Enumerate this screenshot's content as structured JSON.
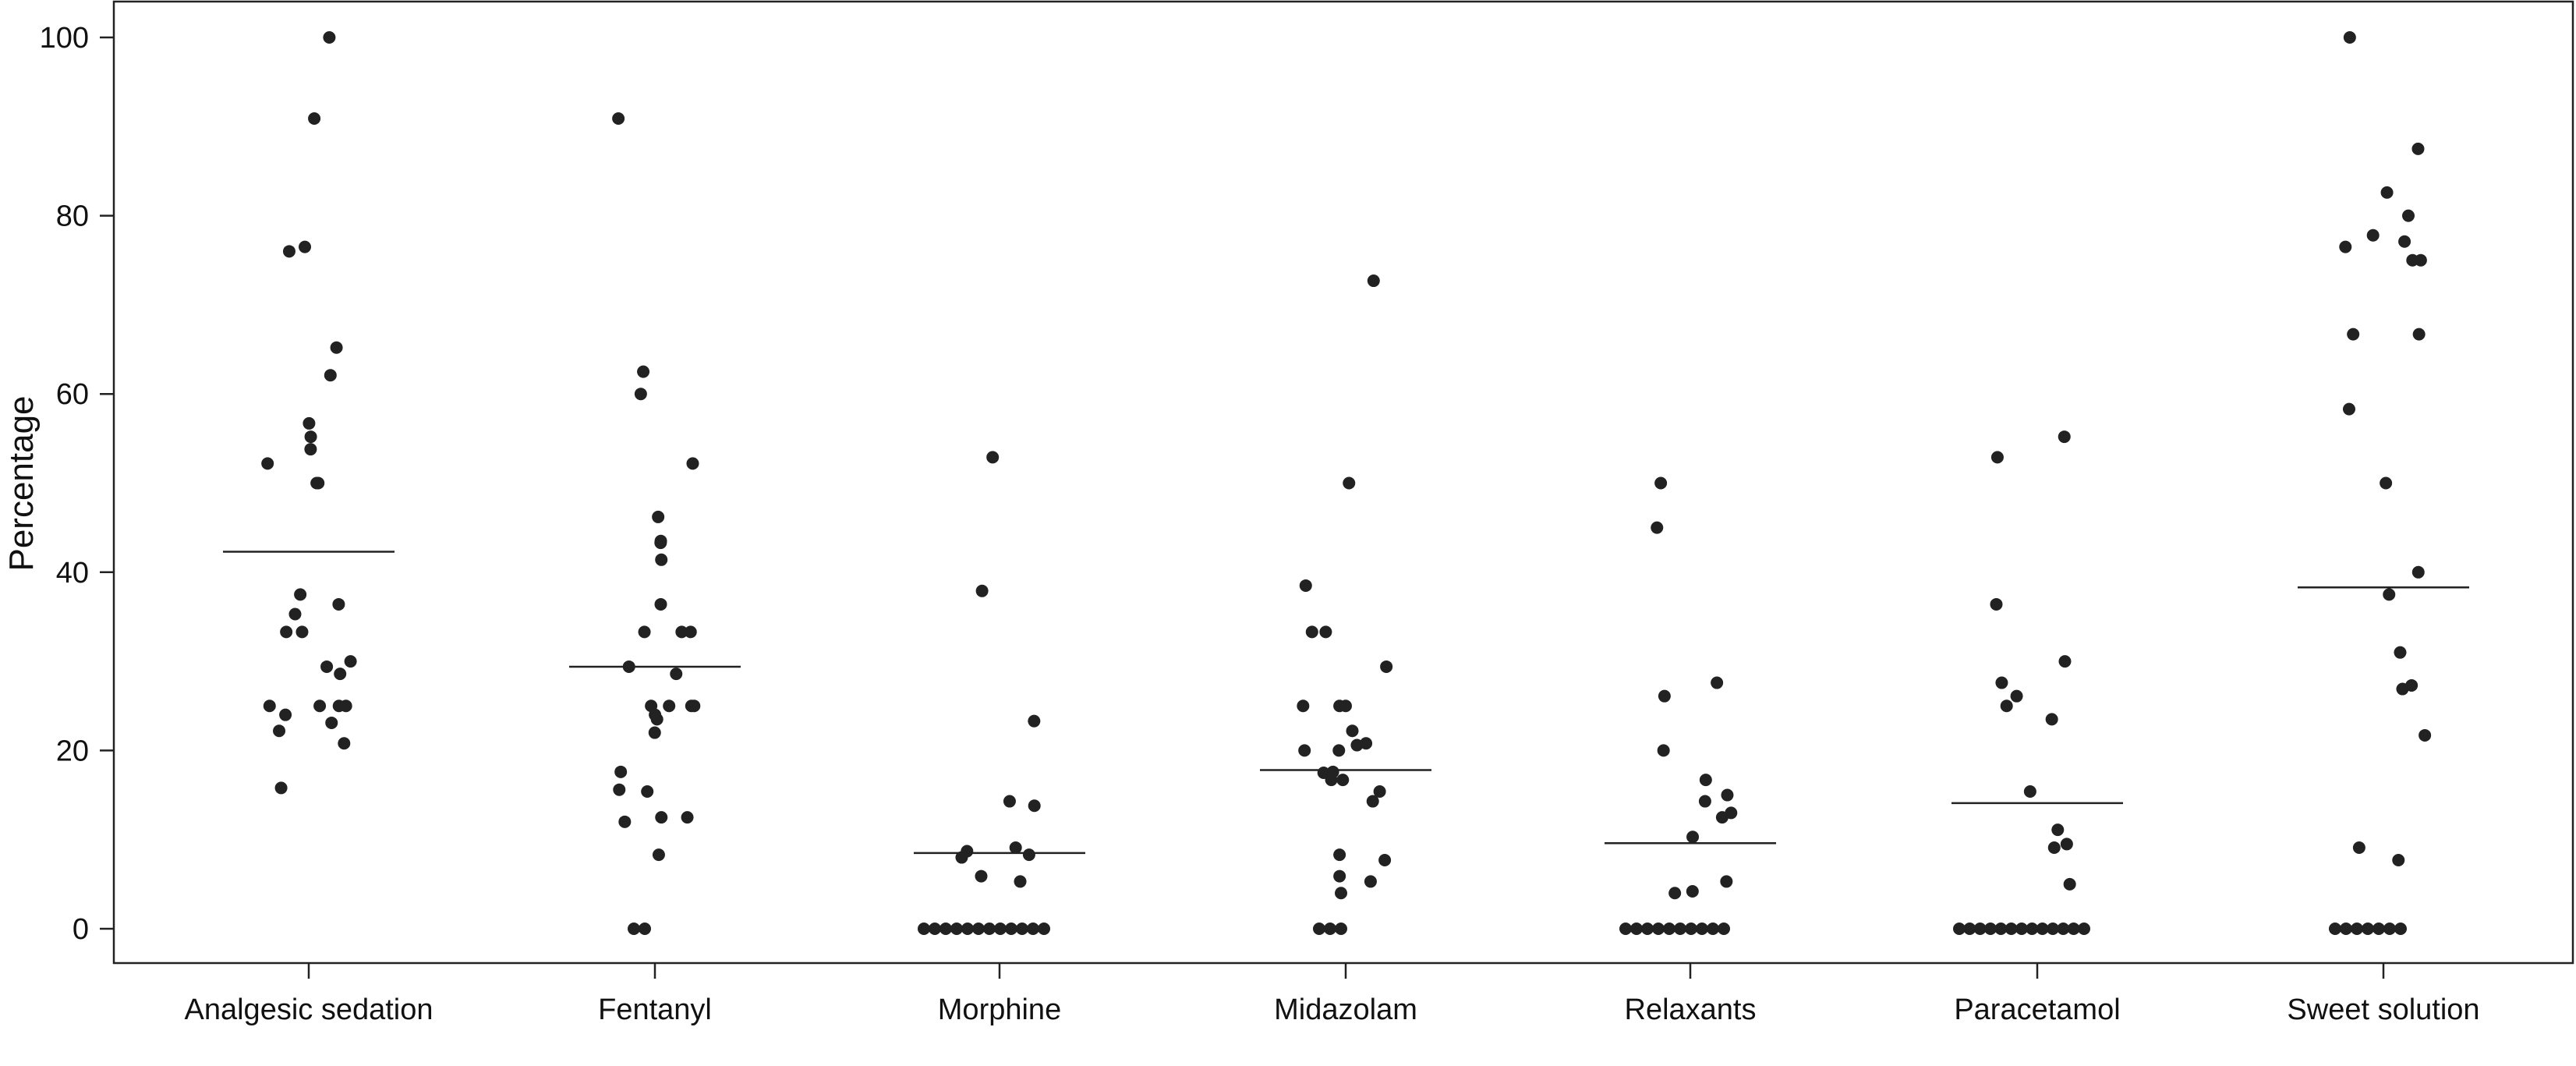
{
  "chart_data": {
    "type": "scatter",
    "title": "",
    "xlabel": "",
    "ylabel": "Percentage",
    "ylim": [
      0,
      100
    ],
    "yticks": [
      0,
      20,
      40,
      60,
      80,
      100
    ],
    "ytick_labels": [
      "0",
      "20",
      "40",
      "60",
      "80",
      "100"
    ],
    "grid": false,
    "legend": "none",
    "point_color": "#222222",
    "median_line_color": "#222222",
    "categories": [
      "Analgesic sedation",
      "Fentanyl",
      "Morphine",
      "Midazolam",
      "Relaxants",
      "Paracetamol",
      "Sweet solution"
    ],
    "series": [
      {
        "category": "Analgesic sedation",
        "median": 42.3,
        "values": [
          100,
          90.9,
          76.5,
          76,
          65.2,
          62.1,
          56.7,
          55.2,
          53.8,
          52.2,
          50,
          50,
          37.5,
          36.4,
          35.3,
          33.3,
          33.3,
          30,
          29.4,
          28.6,
          25,
          25,
          25,
          25,
          24,
          23.1,
          22.2,
          20.8,
          15.8
        ]
      },
      {
        "category": "Fentanyl",
        "median": 29.4,
        "values": [
          90.9,
          62.5,
          60,
          52.2,
          46.2,
          43.5,
          43.3,
          41.4,
          36.4,
          33.3,
          33.3,
          33.3,
          29.4,
          28.6,
          25,
          25,
          25,
          25,
          24,
          23.5,
          22,
          17.6,
          15.6,
          15.4,
          12.5,
          12.5,
          12,
          8.3,
          0,
          0
        ]
      },
      {
        "category": "Morphine",
        "median": 8.5,
        "values": [
          52.9,
          37.9,
          23.3,
          14.3,
          13.8,
          9.1,
          8.7,
          8.3,
          8,
          5.9,
          5.3,
          0,
          0,
          0,
          0,
          0,
          0,
          0,
          0,
          0,
          0,
          0,
          0
        ]
      },
      {
        "category": "Midazolam",
        "median": 17.8,
        "values": [
          72.7,
          50,
          38.5,
          33.3,
          33.3,
          29.4,
          25,
          25,
          25,
          22.2,
          20.8,
          20.6,
          20,
          20,
          17.6,
          17.5,
          16.7,
          16.7,
          15.4,
          14.3,
          8.3,
          7.7,
          5.9,
          5.3,
          4,
          0,
          0,
          0
        ]
      },
      {
        "category": "Relaxants",
        "median": 9.6,
        "values": [
          50,
          45,
          27.6,
          26.1,
          20,
          16.7,
          15,
          14.3,
          13,
          12.5,
          10.3,
          5.3,
          4.2,
          4,
          0,
          0,
          0,
          0,
          0,
          0,
          0,
          0,
          0,
          0
        ]
      },
      {
        "category": "Paracetamol",
        "median": 14.1,
        "values": [
          55.2,
          52.9,
          36.4,
          30,
          27.6,
          26.1,
          25,
          23.5,
          15.4,
          11.1,
          9.5,
          9.1,
          5,
          0,
          0,
          0,
          0,
          0,
          0,
          0,
          0,
          0,
          0,
          0,
          0,
          0
        ]
      },
      {
        "category": "Sweet solution",
        "median": 38.3,
        "values": [
          100,
          87.5,
          82.6,
          80,
          77.8,
          77.1,
          76.5,
          75,
          75,
          66.7,
          66.7,
          58.3,
          50,
          40,
          37.5,
          31,
          27.3,
          26.9,
          21.7,
          9.1,
          7.7,
          0,
          0,
          0,
          0,
          0,
          0,
          0
        ]
      }
    ]
  }
}
